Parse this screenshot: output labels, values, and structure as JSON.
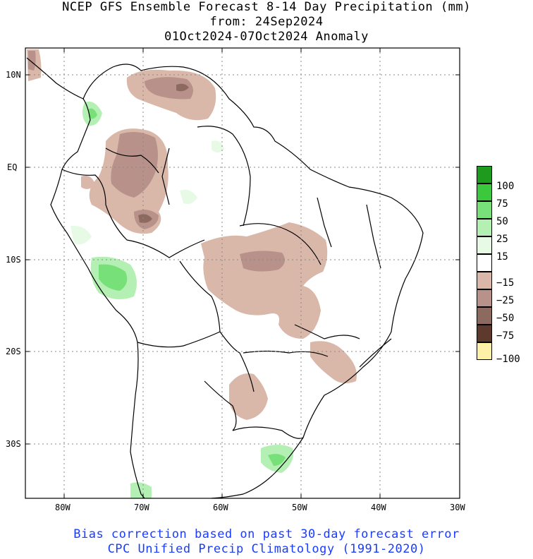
{
  "title": {
    "line1": "NCEP GFS Ensemble Forecast 8-14 Day Precipitation (mm)",
    "line2": "from: 24Sep2024",
    "line3": "01Oct2024-07Oct2024 Anomaly"
  },
  "axes": {
    "lat_labels": [
      "10N",
      "EQ",
      "10S",
      "20S",
      "30S"
    ],
    "lon_labels": [
      "80W",
      "70W",
      "60W",
      "50W",
      "40W",
      "30W"
    ]
  },
  "legend": {
    "items": [
      {
        "label": "100",
        "color": "#1e9a1e"
      },
      {
        "label": "75",
        "color": "#3cc83c"
      },
      {
        "label": "50",
        "color": "#78e078"
      },
      {
        "label": "25",
        "color": "#b4f0b4"
      },
      {
        "label": "15",
        "color": "#e6fae6"
      },
      {
        "label": "",
        "color": "#ffffff"
      },
      {
        "label": "−15",
        "color": "#d9b8aa"
      },
      {
        "label": "−25",
        "color": "#b8928a"
      },
      {
        "label": "−50",
        "color": "#8c6a60"
      },
      {
        "label": "−75",
        "color": "#5e3a2e"
      },
      {
        "label": "−100",
        "color": "#fff0a8"
      }
    ]
  },
  "footer": {
    "line1": "Bias correction based on past 30-day forecast error",
    "line2": "CPC Unified Precip Climatology (1991-2020)"
  }
}
